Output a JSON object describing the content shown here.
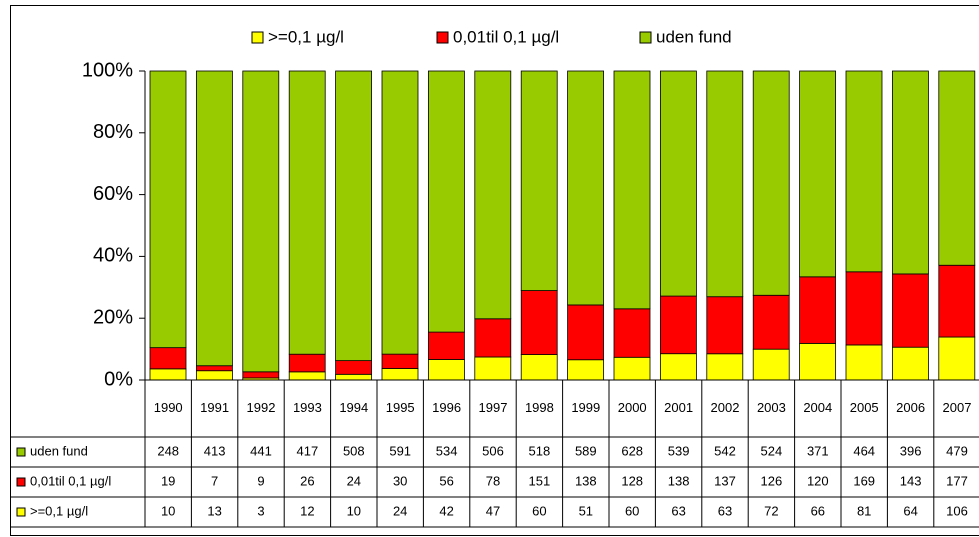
{
  "chart_data": {
    "type": "bar",
    "stacked": "percent",
    "categories": [
      "1990",
      "1991",
      "1992",
      "1993",
      "1994",
      "1995",
      "1996",
      "1997",
      "1998",
      "1999",
      "2000",
      "2001",
      "2002",
      "2003",
      "2004",
      "2005",
      "2006",
      "2007"
    ],
    "series": [
      {
        "name": ">=0,1 µg/l",
        "color": "#ffff00",
        "values": [
          10,
          13,
          3,
          12,
          10,
          24,
          42,
          47,
          60,
          51,
          60,
          63,
          63,
          72,
          66,
          81,
          64,
          106
        ]
      },
      {
        "name": "0,01til 0,1 µg/l",
        "color": "#ff0000",
        "values": [
          19,
          7,
          9,
          26,
          24,
          30,
          56,
          78,
          151,
          138,
          128,
          138,
          137,
          126,
          120,
          169,
          143,
          177
        ]
      },
      {
        "name": "uden fund",
        "color": "#99cc00",
        "values": [
          248,
          413,
          441,
          417,
          508,
          591,
          534,
          506,
          518,
          589,
          628,
          539,
          542,
          524,
          371,
          464,
          396,
          479
        ]
      }
    ],
    "ylim": [
      0,
      100
    ],
    "yticks": [
      {
        "value": 0,
        "label": "0%"
      },
      {
        "value": 20,
        "label": "20%"
      },
      {
        "value": 40,
        "label": "40%"
      },
      {
        "value": 60,
        "label": "60%"
      },
      {
        "value": 80,
        "label": "80%"
      },
      {
        "value": 100,
        "label": "100%"
      }
    ],
    "grid": false,
    "legend": "top",
    "data_table": true
  }
}
